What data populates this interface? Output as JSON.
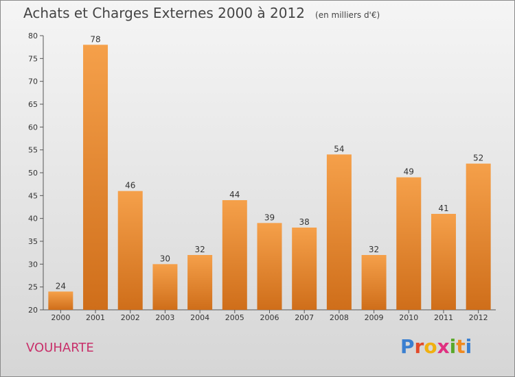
{
  "chart_data": {
    "type": "bar",
    "title": "Achats et Charges Externes 2000 à 2012",
    "subtitle": "(en milliers d'€)",
    "categories": [
      "2000",
      "2001",
      "2002",
      "2003",
      "2004",
      "2005",
      "2006",
      "2007",
      "2008",
      "2009",
      "2010",
      "2011",
      "2012"
    ],
    "values": [
      24,
      78,
      46,
      30,
      32,
      44,
      39,
      38,
      54,
      32,
      49,
      41,
      52
    ],
    "ylim": [
      20,
      80
    ],
    "yticks": [
      20,
      25,
      30,
      35,
      40,
      45,
      50,
      55,
      60,
      65,
      70,
      75,
      80
    ],
    "xlabel": "",
    "ylabel": "",
    "grid": false,
    "bar_color": "#f5a04a",
    "bar_shade": "#cf6e1a"
  },
  "location_name": "VOUHARTE",
  "brand": {
    "letters": [
      "P",
      "r",
      "o",
      "x",
      "i",
      "t",
      "i"
    ],
    "colors": [
      "#3a7fd0",
      "#e24a2a",
      "#f0b010",
      "#e03080",
      "#5aa82a",
      "#f08a20",
      "#3a7fd0"
    ]
  },
  "colors": {
    "location": "#c8306a",
    "axis": "#555555"
  }
}
